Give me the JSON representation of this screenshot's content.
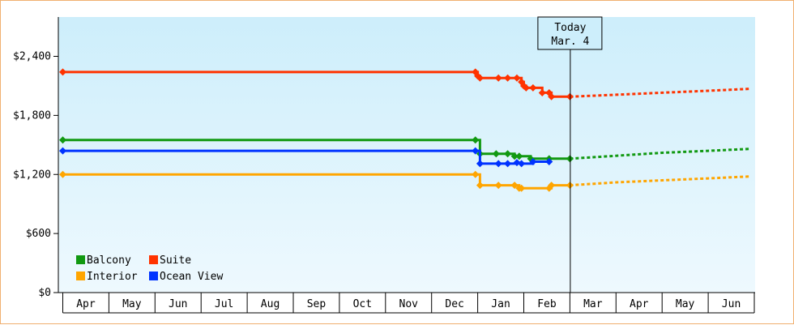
{
  "chart_data": {
    "type": "line",
    "y_ticks": [
      "$0",
      "$600",
      "$1,200",
      "$1,800",
      "$2,400"
    ],
    "ylim": [
      0,
      2800
    ],
    "months": [
      "Apr",
      "May",
      "Jun",
      "Jul",
      "Aug",
      "Sep",
      "Oct",
      "Nov",
      "Dec",
      "Jan",
      "Feb",
      "Mar",
      "Apr",
      "May",
      "Jun"
    ],
    "today": {
      "line1": "Today",
      "line2": "Mar. 4"
    },
    "legend_placement": "bottom-left",
    "grid": false,
    "background_gradient": [
      "#cdeefb",
      "#eef9fe"
    ],
    "series": [
      {
        "name": "Balcony",
        "color": "#119911",
        "points": [
          [
            0.0,
            1550
          ],
          [
            8.95,
            1550
          ],
          [
            9.05,
            1410
          ],
          [
            9.4,
            1410
          ],
          [
            9.65,
            1410
          ],
          [
            9.8,
            1385
          ],
          [
            9.9,
            1385
          ],
          [
            10.15,
            1360
          ],
          [
            10.55,
            1360
          ],
          [
            11.0,
            1360
          ]
        ],
        "forecast": [
          [
            11.0,
            1360
          ],
          [
            12.0,
            1390
          ],
          [
            13.0,
            1420
          ],
          [
            14.0,
            1440
          ],
          [
            14.9,
            1460
          ]
        ]
      },
      {
        "name": "Suite",
        "color": "#ff3300",
        "points": [
          [
            0.0,
            2240
          ],
          [
            8.95,
            2240
          ],
          [
            9.0,
            2200
          ],
          [
            9.05,
            2180
          ],
          [
            9.45,
            2180
          ],
          [
            9.65,
            2180
          ],
          [
            9.85,
            2180
          ],
          [
            9.95,
            2140
          ],
          [
            10.0,
            2100
          ],
          [
            10.05,
            2080
          ],
          [
            10.2,
            2080
          ],
          [
            10.4,
            2030
          ],
          [
            10.55,
            2030
          ],
          [
            10.6,
            1990
          ],
          [
            11.0,
            1990
          ]
        ],
        "forecast": [
          [
            11.0,
            1990
          ],
          [
            12.0,
            2010
          ],
          [
            13.0,
            2030
          ],
          [
            14.0,
            2050
          ],
          [
            14.9,
            2070
          ]
        ]
      },
      {
        "name": "Interior",
        "color": "#ffa500",
        "points": [
          [
            0.0,
            1200
          ],
          [
            8.95,
            1200
          ],
          [
            9.05,
            1090
          ],
          [
            9.45,
            1090
          ],
          [
            9.8,
            1090
          ],
          [
            9.9,
            1060
          ],
          [
            9.95,
            1060
          ],
          [
            10.55,
            1060
          ],
          [
            10.6,
            1090
          ],
          [
            11.0,
            1090
          ]
        ],
        "forecast": [
          [
            11.0,
            1090
          ],
          [
            12.0,
            1120
          ],
          [
            13.0,
            1140
          ],
          [
            14.0,
            1160
          ],
          [
            14.9,
            1180
          ]
        ]
      },
      {
        "name": "Ocean View",
        "color": "#0033ff",
        "points": [
          [
            0.0,
            1440
          ],
          [
            8.95,
            1440
          ],
          [
            9.05,
            1310
          ],
          [
            9.45,
            1310
          ],
          [
            9.65,
            1310
          ],
          [
            9.85,
            1320
          ],
          [
            9.95,
            1310
          ],
          [
            10.2,
            1330
          ],
          [
            10.55,
            1330
          ]
        ],
        "forecast": []
      }
    ]
  }
}
